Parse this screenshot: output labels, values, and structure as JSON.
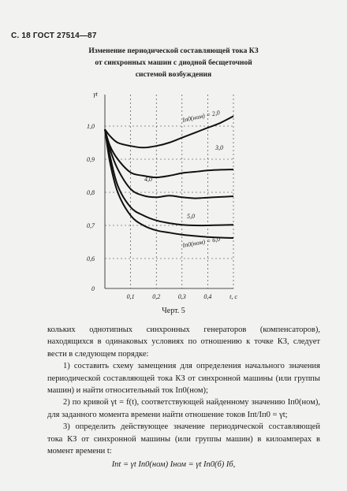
{
  "header": {
    "text": "С. 18 ГОСТ 27514—87"
  },
  "figure": {
    "title_lines": [
      "Изменение периодической составляющей тока КЗ",
      "от синхронных машин с диодной бесщеточной",
      "системой возбуждения"
    ],
    "caption": "Черт. 5"
  },
  "chart_data": {
    "type": "line",
    "title": "",
    "xlabel": "t, c",
    "ylabel": "γt",
    "xlim": [
      0,
      0.5
    ],
    "ylim": [
      0.6,
      1.05
    ],
    "x_ticks": [
      "0,1",
      "0,2",
      "0,3",
      "0,4",
      "t, с"
    ],
    "y_ticks": [
      "1,0",
      "0,9",
      "0,8",
      "0,7",
      "0,6"
    ],
    "origin_label": "0",
    "grid": true,
    "series": [
      {
        "name": "Iп0/Iном = 2,0",
        "label_text": "Iп0(ном) = 2,0",
        "x": [
          0,
          0.02,
          0.05,
          0.1,
          0.15,
          0.2,
          0.25,
          0.3,
          0.35,
          0.4,
          0.45,
          0.5
        ],
        "y": [
          0.99,
          0.97,
          0.95,
          0.94,
          0.935,
          0.94,
          0.95,
          0.965,
          0.98,
          0.995,
          1.01,
          1.03
        ]
      },
      {
        "name": "3,0",
        "label_text": "3,0",
        "x": [
          0,
          0.02,
          0.05,
          0.1,
          0.15,
          0.2,
          0.25,
          0.3,
          0.35,
          0.4,
          0.45,
          0.5
        ],
        "y": [
          0.99,
          0.94,
          0.9,
          0.86,
          0.85,
          0.845,
          0.85,
          0.858,
          0.862,
          0.866,
          0.868,
          0.869
        ]
      },
      {
        "name": "4,0",
        "label_text": "4,0",
        "x": [
          0,
          0.02,
          0.05,
          0.1,
          0.15,
          0.2,
          0.25,
          0.3,
          0.35,
          0.4,
          0.45,
          0.5
        ],
        "y": [
          0.99,
          0.93,
          0.87,
          0.81,
          0.79,
          0.785,
          0.79,
          0.785,
          0.782,
          0.784,
          0.786,
          0.788
        ]
      },
      {
        "name": "5,0",
        "label_text": "5,0",
        "x": [
          0,
          0.02,
          0.05,
          0.1,
          0.15,
          0.2,
          0.25,
          0.3,
          0.35,
          0.4,
          0.45,
          0.5
        ],
        "y": [
          0.99,
          0.91,
          0.82,
          0.755,
          0.73,
          0.715,
          0.707,
          0.702,
          0.7,
          0.7,
          0.701,
          0.702
        ]
      },
      {
        "name": "Iп0/Iном = 6,0",
        "label_text": "Iп0(ном) = 6,0",
        "x": [
          0,
          0.02,
          0.05,
          0.1,
          0.15,
          0.2,
          0.25,
          0.3,
          0.35,
          0.4,
          0.45,
          0.5
        ],
        "y": [
          0.99,
          0.89,
          0.8,
          0.73,
          0.7,
          0.685,
          0.678,
          0.672,
          0.668,
          0.665,
          0.663,
          0.662
        ]
      }
    ]
  },
  "body": {
    "p1": "кольких однотипных синхронных генераторов (компенсаторов), находящихся в одинаковых условиях по отношению к точке КЗ, следует вести в следующем порядке:",
    "p2": "1) составить схему замещения для определения начального значения периодической составляющей тока КЗ от синхронной машины (или группы машин) и найти относительный ток Iп0(ном);",
    "p3": "2) по кривой γt = f(t), соответствующей найденному значению Iп0(ном), для заданного момента времени найти отношение токов Iпt/Iп0 = γt;",
    "p4": "3) определить действующее значение периодической составляющей тока КЗ от синхронной машины (или группы машин) в килоамперах в момент времени t:"
  },
  "formula": {
    "text": "Iпt = γt Iп0(ном) Iном = γt Iп0(б) Iб,"
  }
}
